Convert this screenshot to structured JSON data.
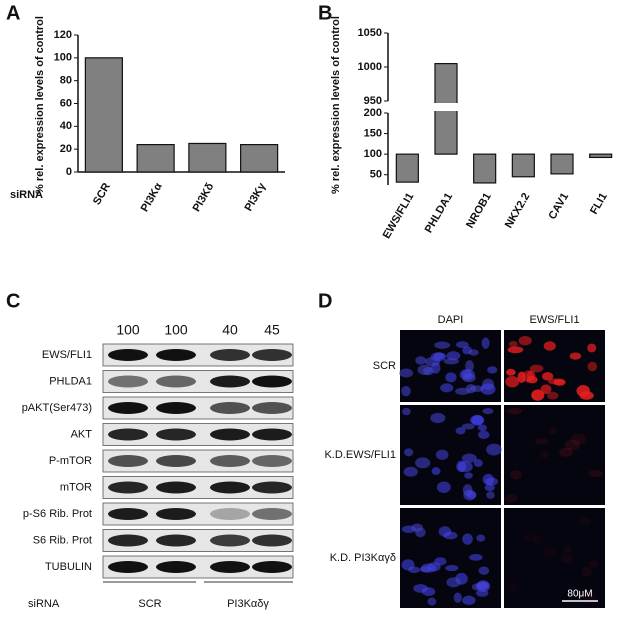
{
  "panel_letters": [
    "A",
    "B",
    "C",
    "D"
  ],
  "chart_data": [
    {
      "type": "bar",
      "ylabel": "% rel. expression levels of control",
      "xlabel": "siRNA",
      "categories": [
        "SCR",
        "PI3Kα",
        "PI3Kδ",
        "PI3Kγ"
      ],
      "values": [
        100,
        24,
        25,
        24
      ],
      "color": "#808080",
      "ylim": [
        0,
        120
      ],
      "yticks": [
        0,
        20,
        40,
        60,
        80,
        100,
        120
      ]
    },
    {
      "type": "bar",
      "ylabel": "% rel. expression levels of control",
      "categories": [
        "EWS/FLI1",
        "PHLDA1",
        "NROB1",
        "NKX2.2",
        "CAV1",
        "FLI1"
      ],
      "values": [
        32,
        1005,
        30,
        45,
        52,
        92
      ],
      "color": "#808080",
      "baseline": 100,
      "ylim": [
        25,
        1050
      ],
      "axis_break": [
        200,
        950
      ],
      "yticks": [
        50,
        100,
        150,
        200,
        950,
        1000,
        1050
      ]
    }
  ],
  "blot": {
    "quantification": [
      100,
      100,
      40,
      45
    ],
    "rows": [
      "EWS/FLI1",
      "PHLDA1",
      "pAKT(Ser473)",
      "AKT",
      "P-mTOR",
      "mTOR",
      "p-S6 Rib. Prot",
      "S6 Rib. Prot",
      "TUBULIN"
    ],
    "xlabel": "siRNA",
    "groups": [
      "SCR",
      "PI3Kαδγ"
    ]
  },
  "microscopy": {
    "columns": [
      "DAPI",
      "EWS/FLI1"
    ],
    "rows": [
      "SCR",
      "K.D.EWS/FLI1",
      "K.D. PI3Kαγδ"
    ],
    "scale_bar": "80μM"
  }
}
